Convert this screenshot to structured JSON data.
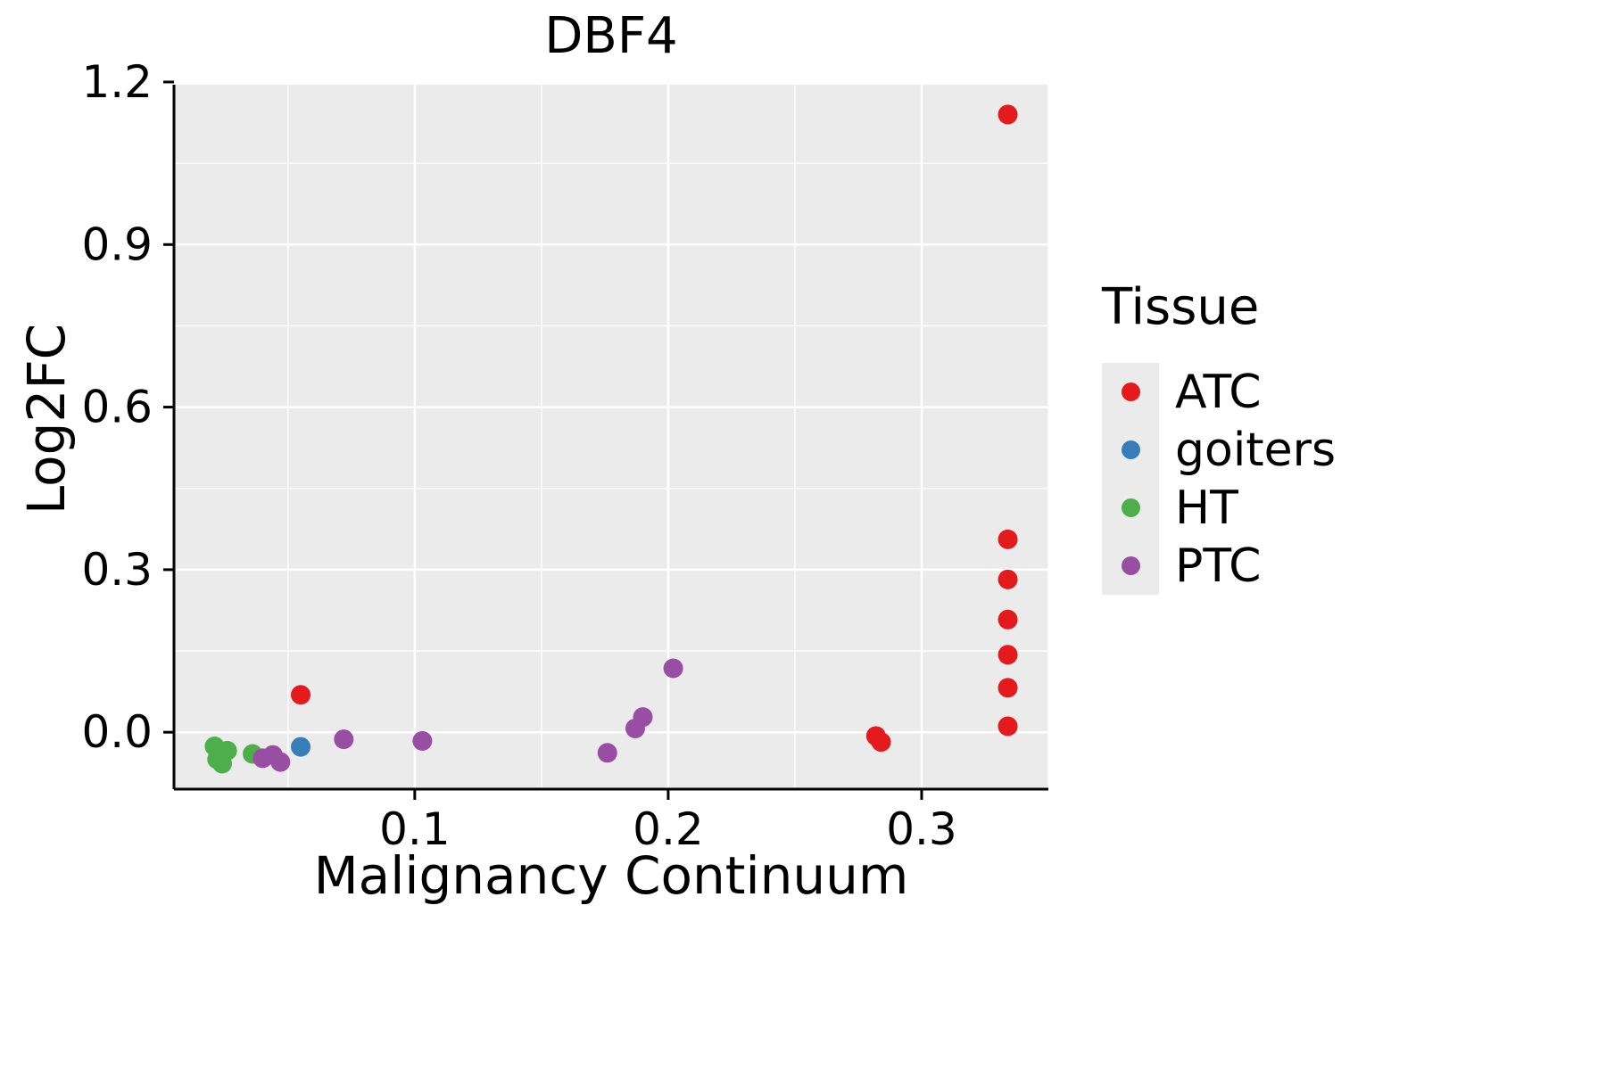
{
  "chart_data": {
    "type": "scatter",
    "title": "DBF4",
    "xlabel": "Malignancy Continuum",
    "ylabel": "Log2FC",
    "xlim": [
      0.005,
      0.35
    ],
    "ylim": [
      -0.105,
      1.195
    ],
    "xticks": [
      {
        "v": 0.1,
        "label": "0.1"
      },
      {
        "v": 0.2,
        "label": "0.2"
      },
      {
        "v": 0.3,
        "label": "0.3"
      }
    ],
    "yticks": [
      {
        "v": 0.0,
        "label": "0.0"
      },
      {
        "v": 0.3,
        "label": "0.3"
      },
      {
        "v": 0.6,
        "label": "0.6"
      },
      {
        "v": 0.9,
        "label": "0.9"
      },
      {
        "v": 1.2,
        "label": "1.2"
      }
    ],
    "xminor": [
      0.05,
      0.15,
      0.25,
      0.35
    ],
    "yminor": [
      0.15,
      0.45,
      0.75,
      1.05
    ],
    "panel_bg": "#EBEBEB",
    "grid_color": "#FFFFFF",
    "axis_color": "#000000",
    "point_radius": 11,
    "legend": {
      "title": "Tissue",
      "position": "right"
    },
    "series": [
      {
        "name": "ATC",
        "color": "#E41A1C",
        "points": [
          [
            0.334,
            1.14
          ],
          [
            0.334,
            0.356
          ],
          [
            0.334,
            0.282
          ],
          [
            0.334,
            0.208
          ],
          [
            0.334,
            0.143
          ],
          [
            0.334,
            0.082
          ],
          [
            0.334,
            0.011
          ],
          [
            0.282,
            -0.007
          ],
          [
            0.284,
            -0.018
          ],
          [
            0.055,
            0.069
          ]
        ]
      },
      {
        "name": "goiters",
        "color": "#377EB8",
        "points": [
          [
            0.055,
            -0.027
          ]
        ]
      },
      {
        "name": "HT",
        "color": "#4DAF4A",
        "points": [
          [
            0.021,
            -0.026
          ],
          [
            0.022,
            -0.05
          ],
          [
            0.026,
            -0.034
          ],
          [
            0.024,
            -0.058
          ],
          [
            0.036,
            -0.04
          ]
        ]
      },
      {
        "name": "PTC",
        "color": "#984EA3",
        "points": [
          [
            0.04,
            -0.048
          ],
          [
            0.044,
            -0.042
          ],
          [
            0.047,
            -0.055
          ],
          [
            0.072,
            -0.013
          ],
          [
            0.103,
            -0.016
          ],
          [
            0.176,
            -0.038
          ],
          [
            0.187,
            0.007
          ],
          [
            0.19,
            0.028
          ],
          [
            0.202,
            0.118
          ]
        ]
      }
    ]
  }
}
